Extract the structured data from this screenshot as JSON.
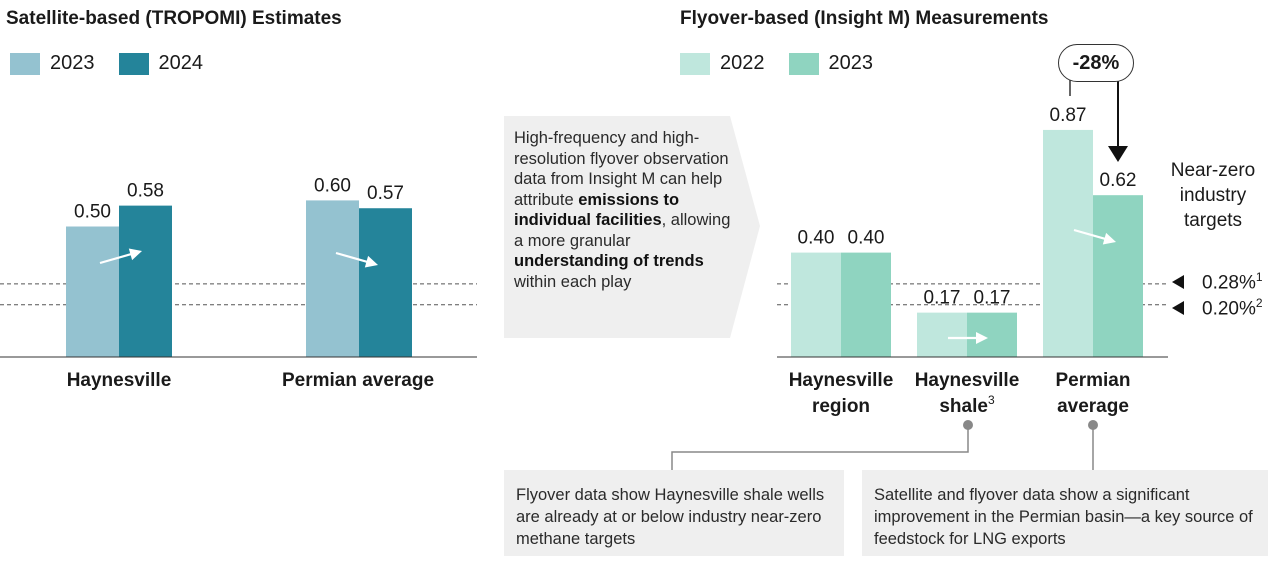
{
  "left_panel": {
    "title": "Satellite-based (TROPOMI) Estimates",
    "legend": [
      "2023",
      "2024"
    ]
  },
  "right_panel": {
    "title": "Flyover-based (Insight M) Measurements",
    "legend": [
      "2022",
      "2023"
    ]
  },
  "colors": {
    "sat_2023": "#94c2d0",
    "sat_2024": "#24849a",
    "fly_2022": "#bfe7dd",
    "fly_2023": "#8fd4c0",
    "gray_box": "#efefef"
  },
  "callout": {
    "part1": "High-frequency and high-resolution flyover observation data from Insight M can help attribute ",
    "bold1": "emissions to individual facilities",
    "part2": ", allowing a more granular ",
    "bold2": "understanding of trends",
    "part3": " within each play"
  },
  "change_badge": "-28%",
  "targets": {
    "label": "Near-zero industry targets",
    "items": [
      {
        "value": "0.28%",
        "note": "1"
      },
      {
        "value": "0.20%",
        "note": "2"
      }
    ]
  },
  "notes": {
    "haynesville": "Flyover data show Haynesville shale wells are already at or below industry near-zero methane targets",
    "permian": "Satellite and flyover data show a significant improvement in the Permian basin—a key source of feedstock for LNG exports"
  },
  "chart_data": [
    {
      "type": "bar",
      "categories": [
        "Haynesville",
        "Permian average"
      ],
      "series": [
        {
          "name": "2023",
          "values": [
            0.5,
            0.6
          ]
        },
        {
          "name": "2024",
          "values": [
            0.58,
            0.57
          ]
        }
      ],
      "value_labels": [
        [
          "0.50",
          "0.60"
        ],
        [
          "0.58",
          "0.57"
        ]
      ],
      "reference_lines": [
        0.28,
        0.2
      ],
      "ylim": [
        0,
        1.0
      ]
    },
    {
      "type": "bar",
      "categories": [
        "Haynesville region",
        "Haynesville shale",
        "Permian average"
      ],
      "category_notes": [
        "",
        "3",
        ""
      ],
      "series": [
        {
          "name": "2022",
          "values": [
            0.4,
            0.17,
            0.87
          ]
        },
        {
          "name": "2023",
          "values": [
            0.4,
            0.17,
            0.62
          ]
        }
      ],
      "value_labels": [
        [
          "0.40",
          "0.17",
          "0.87"
        ],
        [
          "0.40",
          "0.17",
          "0.62"
        ]
      ],
      "reference_lines": [
        0.28,
        0.2
      ],
      "ylim": [
        0,
        1.0
      ]
    }
  ]
}
